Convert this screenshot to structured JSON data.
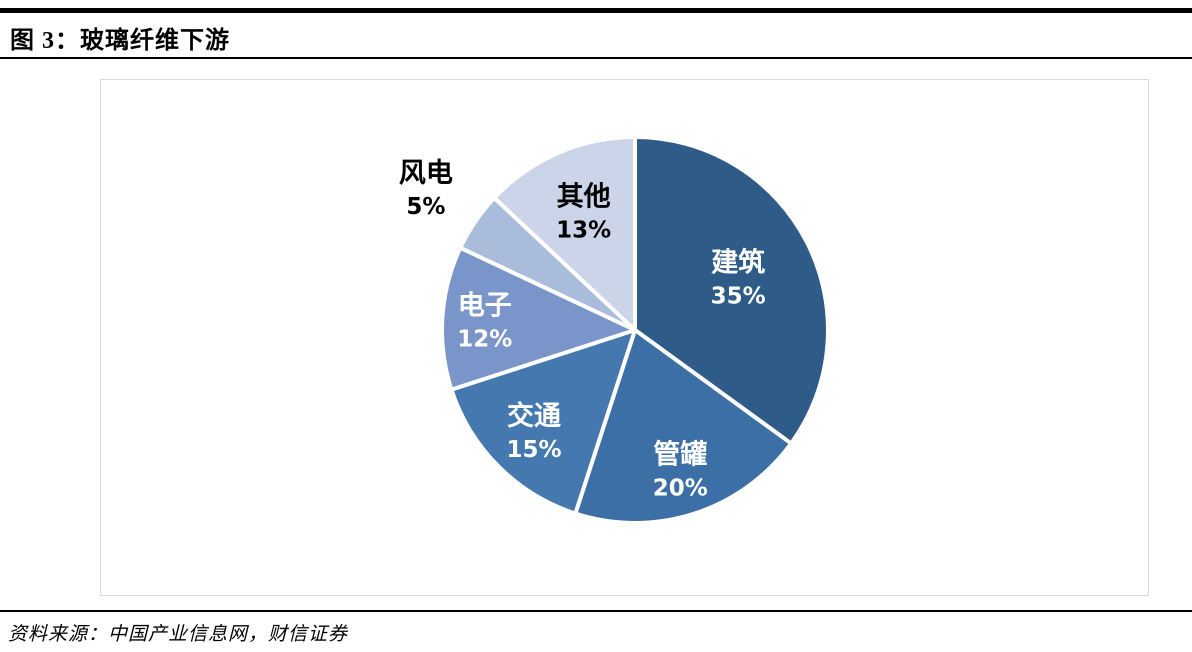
{
  "figure": {
    "title": "图 3：玻璃纤维下游",
    "source": "资料来源：中国产业信息网，财信证券"
  },
  "chart_data": {
    "type": "pie",
    "title": "玻璃纤维下游",
    "unit": "%",
    "start_angle_deg": 0,
    "direction": "clockwise",
    "legend": "none",
    "slice_border_color": "#ffffff",
    "slices": [
      {
        "label": "建筑",
        "value": 35,
        "display": "35%",
        "color": "#2e5b87",
        "text_color": "#ffffff",
        "label_inside": true,
        "label_r": 0.6
      },
      {
        "label": "管罐",
        "value": 20,
        "display": "20%",
        "color": "#3c6fa6",
        "text_color": "#ffffff",
        "label_inside": true,
        "label_r": 0.76
      },
      {
        "label": "交通",
        "value": 15,
        "display": "15%",
        "color": "#4678b0",
        "text_color": "#ffffff",
        "label_inside": true,
        "label_r": 0.74
      },
      {
        "label": "电子",
        "value": 12,
        "display": "12%",
        "color": "#7a95c9",
        "text_color": "#ffffff",
        "label_inside": true,
        "label_r": 0.78
      },
      {
        "label": "风电",
        "value": 5,
        "display": "5%",
        "color": "#a9bcdc",
        "text_color": "#000000",
        "label_inside": false,
        "label_r": 1.31
      },
      {
        "label": "其他",
        "value": 13,
        "display": "13%",
        "color": "#cbd4e8",
        "text_color": "#000000",
        "label_inside": true,
        "label_r": 0.67
      }
    ]
  }
}
